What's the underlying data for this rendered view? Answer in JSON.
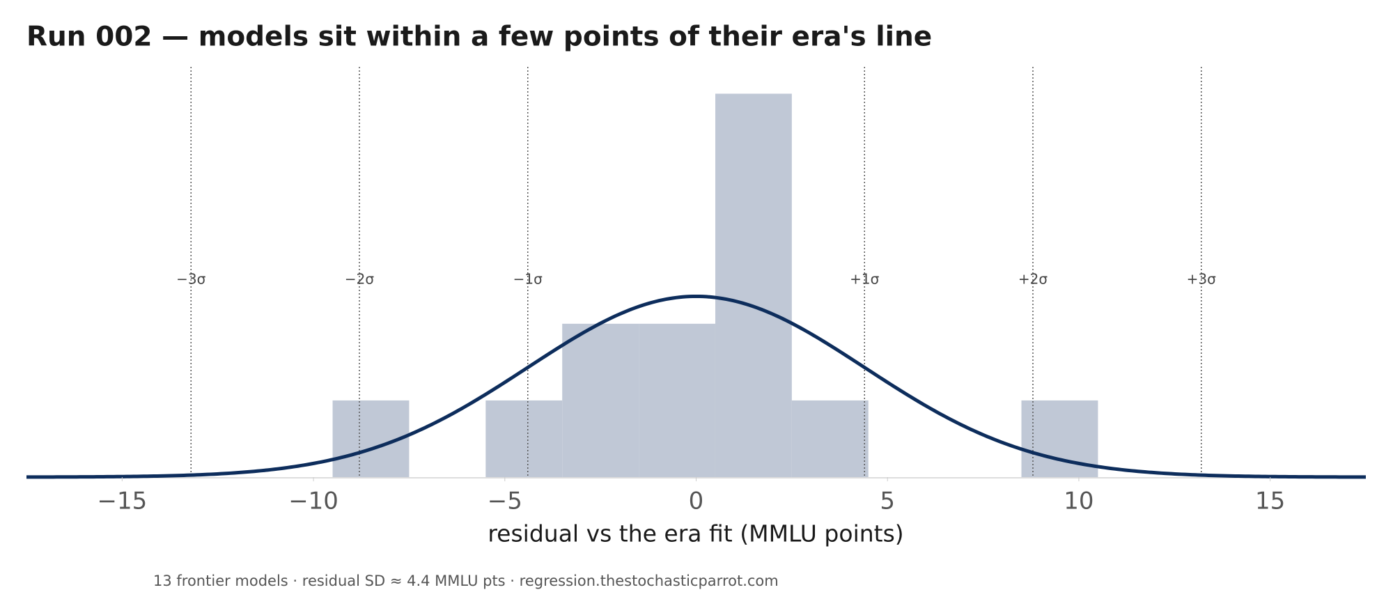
{
  "chart_data": {
    "type": "histogram",
    "title": "Run 002 — models sit within a few points of their era's line",
    "xlabel": "residual vs the era fit  (MMLU points)",
    "footer": "13 frontier models · residual SD ≈ 4.4 MMLU pts · regression.thestochasticparrot.com",
    "bins": [
      -9.5,
      -7.5,
      -5.5,
      -3.5,
      -1.5,
      0.5,
      2.5,
      4.5,
      6.5,
      8.5,
      10.5
    ],
    "counts": [
      1,
      0,
      1,
      2,
      2,
      5,
      1,
      0,
      0,
      1
    ],
    "color": "#c0c8d6",
    "normal_fit": {
      "mean": 0,
      "sd": 4.4,
      "color": "#0d2d5c"
    },
    "sigma_lines": [
      {
        "value": -13.2,
        "label": "−3σ"
      },
      {
        "value": -8.8,
        "label": "−2σ"
      },
      {
        "value": -4.4,
        "label": "−1σ"
      },
      {
        "value": 4.4,
        "label": "+1σ"
      },
      {
        "value": 8.8,
        "label": "+2σ"
      },
      {
        "value": 13.2,
        "label": "+3σ"
      }
    ],
    "xlim": [
      -17.5,
      17.5
    ],
    "ylim": [
      0,
      5.35
    ],
    "xticks": [
      {
        "value": -15,
        "label": "−15"
      },
      {
        "value": -10,
        "label": "−10"
      },
      {
        "value": -5,
        "label": "−5"
      },
      0,
      5,
      10,
      15
    ]
  }
}
